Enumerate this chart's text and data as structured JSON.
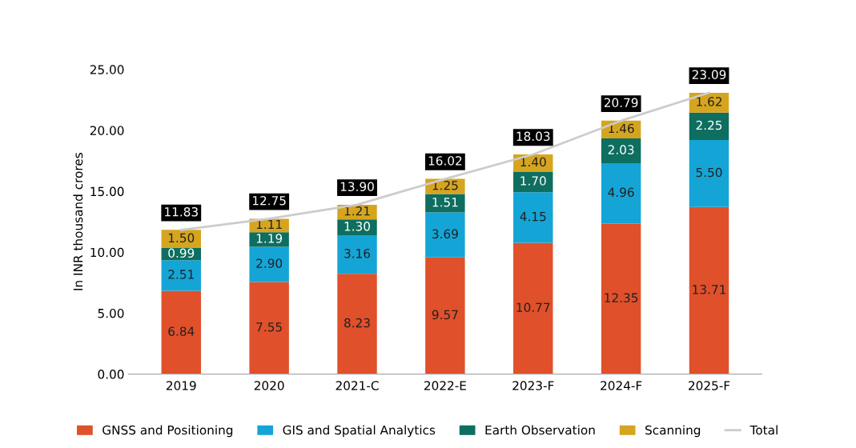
{
  "chart_data": {
    "type": "bar",
    "stacked": true,
    "ylabel": "In INR thousand crores",
    "categories": [
      "2019",
      "2020",
      "2021-C",
      "2022-E",
      "2023-F",
      "2024-F",
      "2025-F"
    ],
    "ylim": [
      0,
      25
    ],
    "yticks": [
      {
        "value": 0,
        "label": "0.00"
      },
      {
        "value": 5,
        "label": "5.00"
      },
      {
        "value": 10,
        "label": "10.00"
      },
      {
        "value": 15,
        "label": "15.00"
      },
      {
        "value": 20,
        "label": "20.00"
      },
      {
        "value": 25,
        "label": "25.00"
      }
    ],
    "grid": false,
    "legend": "bottom",
    "series": [
      {
        "name": "GNSS and Positioning",
        "color": "#e0502b",
        "values": [
          6.84,
          7.55,
          8.23,
          9.57,
          10.77,
          12.35,
          13.71
        ],
        "value_labels": [
          "6.84",
          "7.55",
          "8.23",
          "9.57",
          "10.77",
          "12.35",
          "13.71"
        ]
      },
      {
        "name": "GIS and Spatial Analytics",
        "color": "#14a5d6",
        "values": [
          2.51,
          2.9,
          3.16,
          3.69,
          4.15,
          4.96,
          5.5
        ],
        "value_labels": [
          "2.51",
          "2.90",
          "3.16",
          "3.69",
          "4.15",
          "4.96",
          "5.50"
        ]
      },
      {
        "name": "Earth Observation",
        "color": "#0e6e5f",
        "values": [
          0.99,
          1.19,
          1.3,
          1.51,
          1.7,
          2.03,
          2.25
        ],
        "value_labels": [
          "0.99",
          "1.19",
          "1.30",
          "1.51",
          "1.70",
          "2.03",
          "2.25"
        ]
      },
      {
        "name": "Scanning",
        "color": "#d6a51f",
        "values": [
          1.5,
          1.11,
          1.21,
          1.25,
          1.4,
          1.46,
          1.62
        ],
        "value_labels": [
          "1.50",
          "1.11",
          "1.21",
          "1.25",
          "1.40",
          "1.46",
          "1.62"
        ]
      },
      {
        "name": "Total",
        "type": "line",
        "color": "#cccccc",
        "values": [
          11.83,
          12.75,
          13.9,
          16.02,
          18.03,
          20.79,
          23.09
        ],
        "value_labels": [
          "11.83",
          "12.75",
          "13.90",
          "16.02",
          "18.03",
          "20.79",
          "23.09"
        ]
      }
    ]
  }
}
